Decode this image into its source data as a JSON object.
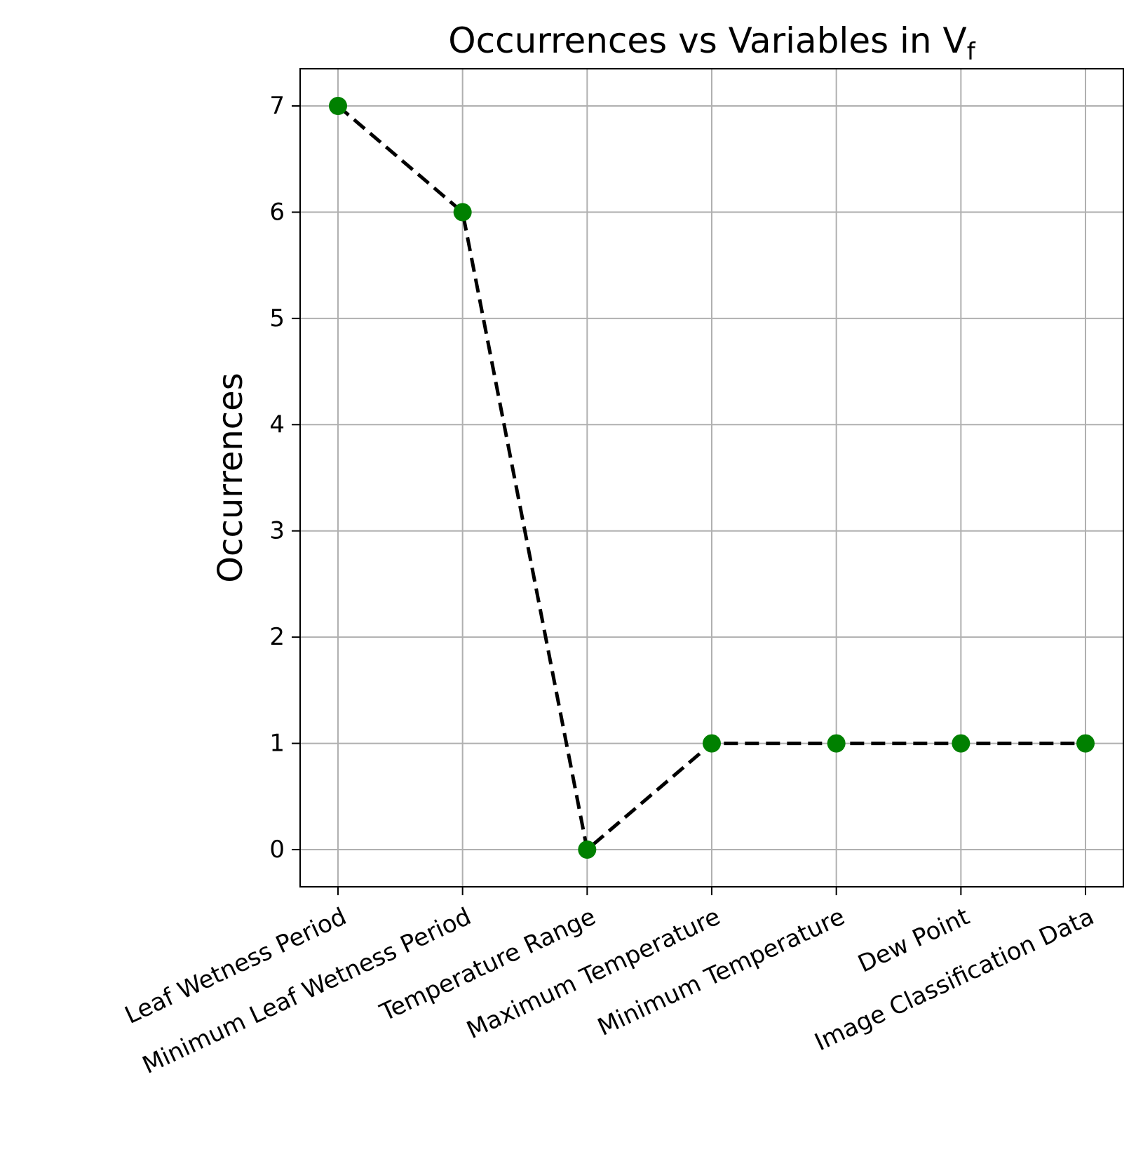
{
  "chart_data": {
    "type": "line",
    "title": {
      "main": "Occurrences vs Variables in V",
      "subscript": "f"
    },
    "xlabel": "",
    "ylabel": "Occurrences",
    "categories": [
      "Leaf Wetness Period",
      "Minimum Leaf Wetness Period",
      "Temperature Range",
      "Maximum Temperature",
      "Minimum Temperature",
      "Dew Point",
      "Image Classification Data"
    ],
    "series": [
      {
        "values": [
          7,
          6,
          0,
          1,
          1,
          1,
          1
        ],
        "line_color": "#000000",
        "line_style": "dashed",
        "marker_color": "#008000"
      }
    ],
    "ylim": [
      -0.35,
      7.35
    ],
    "yticks": [
      0,
      1,
      2,
      3,
      4,
      5,
      6,
      7
    ],
    "grid": true,
    "colors": {
      "grid": "#b0b0b0",
      "axes": "#000000"
    }
  }
}
